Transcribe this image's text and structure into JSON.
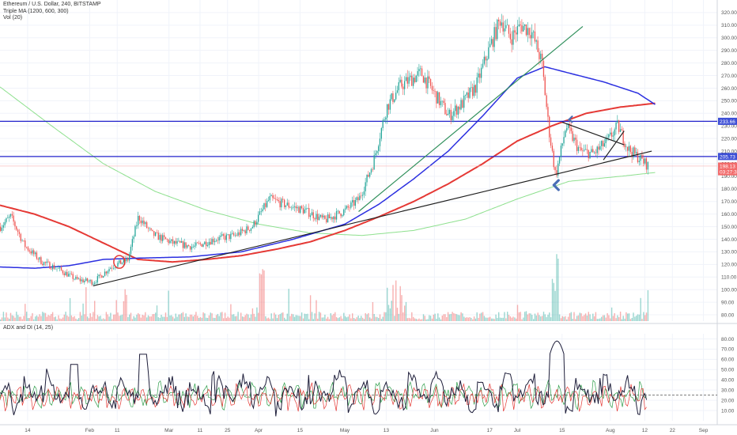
{
  "chart_data": {
    "type": "line",
    "title": "Ethereum / U.S. Dollar, 240, BITSTAMP",
    "indicators": [
      "Triple MA (1200, 600, 300)",
      "Vol (20)"
    ],
    "price_panel": {
      "ylim": [
        75,
        330
      ],
      "ticks": [
        "320.00",
        "310.00",
        "300.00",
        "290.00",
        "280.00",
        "270.00",
        "260.00",
        "250.00",
        "240.00",
        "230.00",
        "220.00",
        "210.00",
        "200.00",
        "190.00",
        "180.00",
        "170.00",
        "160.00",
        "150.00",
        "140.00",
        "130.00",
        "120.00",
        "110.00",
        "100.00",
        "90.00",
        "80.00"
      ],
      "price_tags": [
        {
          "label": "233.66",
          "value": 233.66,
          "color": "#3d4fd6"
        },
        {
          "label": "205.73",
          "value": 205.73,
          "color": "#3d4fd6"
        },
        {
          "label": "198.13",
          "value": 198.13,
          "color": "#f26b6b"
        },
        {
          "label": "03:27:33",
          "value": 193.6,
          "color": "#f26b6b"
        }
      ],
      "horizontal_levels": [
        233.66,
        205.73
      ],
      "candles_key_points": [
        {
          "day": 0,
          "price": 150
        },
        {
          "day": 3,
          "price": 158
        },
        {
          "day": 7,
          "price": 135
        },
        {
          "day": 12,
          "price": 122
        },
        {
          "day": 17,
          "price": 116
        },
        {
          "day": 22,
          "price": 108
        },
        {
          "day": 27,
          "price": 106
        },
        {
          "day": 32,
          "price": 118
        },
        {
          "day": 37,
          "price": 124
        },
        {
          "day": 40,
          "price": 158
        },
        {
          "day": 44,
          "price": 144
        },
        {
          "day": 50,
          "price": 137
        },
        {
          "day": 56,
          "price": 134
        },
        {
          "day": 62,
          "price": 140
        },
        {
          "day": 68,
          "price": 143
        },
        {
          "day": 73,
          "price": 150
        },
        {
          "day": 78,
          "price": 172
        },
        {
          "day": 82,
          "price": 168
        },
        {
          "day": 88,
          "price": 163
        },
        {
          "day": 94,
          "price": 155
        },
        {
          "day": 100,
          "price": 163
        },
        {
          "day": 104,
          "price": 172
        },
        {
          "day": 108,
          "price": 200
        },
        {
          "day": 112,
          "price": 245
        },
        {
          "day": 116,
          "price": 262
        },
        {
          "day": 122,
          "price": 272
        },
        {
          "day": 126,
          "price": 255
        },
        {
          "day": 130,
          "price": 238
        },
        {
          "day": 134,
          "price": 248
        },
        {
          "day": 138,
          "price": 262
        },
        {
          "day": 141,
          "price": 286
        },
        {
          "day": 145,
          "price": 315
        },
        {
          "day": 148,
          "price": 300
        },
        {
          "day": 151,
          "price": 310
        },
        {
          "day": 154,
          "price": 305
        },
        {
          "day": 157,
          "price": 280
        },
        {
          "day": 159,
          "price": 228
        },
        {
          "day": 161,
          "price": 190
        },
        {
          "day": 164,
          "price": 230
        },
        {
          "day": 168,
          "price": 210
        },
        {
          "day": 172,
          "price": 208
        },
        {
          "day": 176,
          "price": 218
        },
        {
          "day": 179,
          "price": 230
        },
        {
          "day": 182,
          "price": 212
        },
        {
          "day": 185,
          "price": 205
        },
        {
          "day": 188,
          "price": 198
        }
      ],
      "ma_300": [
        {
          "day": 0,
          "price": 118
        },
        {
          "day": 10,
          "price": 117
        },
        {
          "day": 20,
          "price": 119
        },
        {
          "day": 30,
          "price": 124
        },
        {
          "day": 40,
          "price": 125
        },
        {
          "day": 55,
          "price": 126
        },
        {
          "day": 70,
          "price": 130
        },
        {
          "day": 85,
          "price": 140
        },
        {
          "day": 100,
          "price": 152
        },
        {
          "day": 110,
          "price": 168
        },
        {
          "day": 120,
          "price": 188
        },
        {
          "day": 130,
          "price": 210
        },
        {
          "day": 140,
          "price": 238
        },
        {
          "day": 150,
          "price": 268
        },
        {
          "day": 158,
          "price": 277
        },
        {
          "day": 165,
          "price": 272
        },
        {
          "day": 175,
          "price": 265
        },
        {
          "day": 185,
          "price": 256
        },
        {
          "day": 190,
          "price": 247
        }
      ],
      "ma_600": [
        {
          "day": 0,
          "price": 167
        },
        {
          "day": 10,
          "price": 160
        },
        {
          "day": 20,
          "price": 150
        },
        {
          "day": 30,
          "price": 137
        },
        {
          "day": 40,
          "price": 124
        },
        {
          "day": 50,
          "price": 122
        },
        {
          "day": 60,
          "price": 124
        },
        {
          "day": 70,
          "price": 127
        },
        {
          "day": 80,
          "price": 132
        },
        {
          "day": 90,
          "price": 138
        },
        {
          "day": 100,
          "price": 147
        },
        {
          "day": 110,
          "price": 158
        },
        {
          "day": 120,
          "price": 170
        },
        {
          "day": 130,
          "price": 184
        },
        {
          "day": 140,
          "price": 200
        },
        {
          "day": 150,
          "price": 218
        },
        {
          "day": 160,
          "price": 230
        },
        {
          "day": 170,
          "price": 240
        },
        {
          "day": 180,
          "price": 245
        },
        {
          "day": 190,
          "price": 248
        }
      ],
      "ma_1200": [
        {
          "day": 0,
          "price": 261
        },
        {
          "day": 15,
          "price": 230
        },
        {
          "day": 30,
          "price": 200
        },
        {
          "day": 45,
          "price": 178
        },
        {
          "day": 60,
          "price": 163
        },
        {
          "day": 75,
          "price": 152
        },
        {
          "day": 90,
          "price": 145
        },
        {
          "day": 105,
          "price": 143
        },
        {
          "day": 120,
          "price": 147
        },
        {
          "day": 135,
          "price": 156
        },
        {
          "day": 150,
          "price": 172
        },
        {
          "day": 165,
          "price": 186
        },
        {
          "day": 180,
          "price": 190
        },
        {
          "day": 190,
          "price": 193
        }
      ],
      "trendlines": [
        {
          "color": "#1e1e1e",
          "from": {
            "day": 27,
            "price": 103
          },
          "to": {
            "day": 189,
            "price": 210
          }
        },
        {
          "color": "#2f8f5b",
          "from": {
            "day": 104,
            "price": 162
          },
          "to": {
            "day": 169,
            "price": 309
          }
        },
        {
          "color": "#1e1e1e",
          "from": {
            "day": 163,
            "price": 233
          },
          "to": {
            "day": 181,
            "price": 215
          }
        },
        {
          "color": "#1e1e1e",
          "from": {
            "day": 175,
            "price": 203
          },
          "to": {
            "day": 181,
            "price": 226
          }
        }
      ]
    },
    "adx_panel": {
      "label": "ADX and DI (14, 25)",
      "ylim": [
        0,
        85
      ],
      "ticks": [
        "80.00",
        "70.00",
        "60.00",
        "50.00",
        "40.00",
        "30.00",
        "20.00",
        "10.00"
      ],
      "threshold": 25
    },
    "x_axis": {
      "tick_labels": [
        {
          "label": "14",
          "day": 8
        },
        {
          "label": "Feb",
          "day": 26
        },
        {
          "label": "11",
          "day": 34
        },
        {
          "label": "Mar",
          "day": 49
        },
        {
          "label": "11",
          "day": 58
        },
        {
          "label": "25",
          "day": 66
        },
        {
          "label": "Apr",
          "day": 75
        },
        {
          "label": "15",
          "day": 87
        },
        {
          "label": "May",
          "day": 100
        },
        {
          "label": "13",
          "day": 112
        },
        {
          "label": "Jun",
          "day": 126
        },
        {
          "label": "17",
          "day": 142
        },
        {
          "label": "Jul",
          "day": 150
        },
        {
          "label": "15",
          "day": 163
        },
        {
          "label": "Aug",
          "day": 177
        },
        {
          "label": "12",
          "day": 187
        },
        {
          "label": "22",
          "day": 195
        },
        {
          "label": "Sep",
          "day": 204
        }
      ],
      "range": [
        0,
        208
      ]
    },
    "colors": {
      "bull": "#26a69a",
      "bear": "#ef5350",
      "ma_300": "#2b2fe0",
      "ma_600": "#e53935",
      "ma_1200": "#8ee08e",
      "level_line": "#2222cc",
      "adx_line": "#1e1e3a",
      "plus_di": "#e53935",
      "minus_di": "#2e9e4a"
    }
  }
}
